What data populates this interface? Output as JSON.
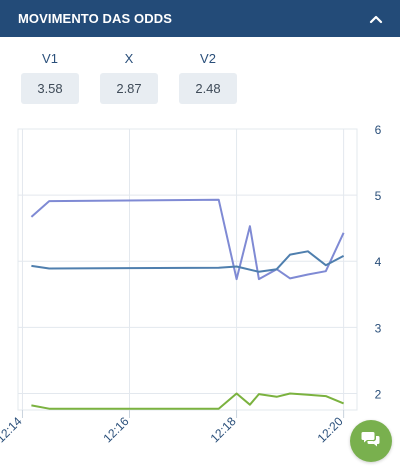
{
  "header": {
    "title": "MOVIMENTO DAS ODDS",
    "toggle_icon": "chevron-up-icon"
  },
  "odds": [
    {
      "label": "V1",
      "value": "3.58"
    },
    {
      "label": "X",
      "value": "2.87"
    },
    {
      "label": "V2",
      "value": "2.48"
    }
  ],
  "colors": {
    "header": "#234b78",
    "v1": "#7f8ad4",
    "x": "#4f7fae",
    "v2": "#7bb23f",
    "chat": "#79b04e"
  },
  "chat_button": {
    "icon": "chat-bubbles-icon"
  },
  "chart_data": {
    "type": "line",
    "x_ticks": [
      "12:14",
      "12:16",
      "12:18",
      "12:20"
    ],
    "y_ticks": [
      "2",
      "3",
      "4",
      "5",
      "6"
    ],
    "ylim": [
      1.75,
      6
    ],
    "xlim_minutes": [
      12.23,
      12.33
    ],
    "grid": true,
    "series": [
      {
        "key": "v1",
        "x": [
          "12:14:10",
          "12:14:30",
          "12:17:40",
          "12:18:00",
          "12:18:15",
          "12:18:25",
          "12:18:45",
          "12:19:00",
          "12:19:20",
          "12:19:40",
          "12:20:00"
        ],
        "values": [
          4.67,
          4.91,
          4.93,
          3.73,
          4.53,
          3.73,
          3.88,
          3.74,
          3.8,
          3.85,
          4.43
        ]
      },
      {
        "key": "x",
        "x": [
          "12:14:10",
          "12:14:30",
          "12:17:40",
          "12:18:00",
          "12:18:25",
          "12:18:45",
          "12:19:00",
          "12:19:20",
          "12:19:40",
          "12:20:00"
        ],
        "values": [
          3.93,
          3.89,
          3.9,
          3.92,
          3.84,
          3.88,
          4.1,
          4.15,
          3.94,
          4.08
        ]
      },
      {
        "key": "v2",
        "x": [
          "12:14:10",
          "12:14:30",
          "12:17:40",
          "12:18:00",
          "12:18:15",
          "12:18:25",
          "12:18:45",
          "12:19:00",
          "12:19:20",
          "12:19:40",
          "12:20:00"
        ],
        "values": [
          1.82,
          1.77,
          1.77,
          2.0,
          1.83,
          1.99,
          1.95,
          2.0,
          1.98,
          1.96,
          1.85
        ]
      }
    ]
  }
}
